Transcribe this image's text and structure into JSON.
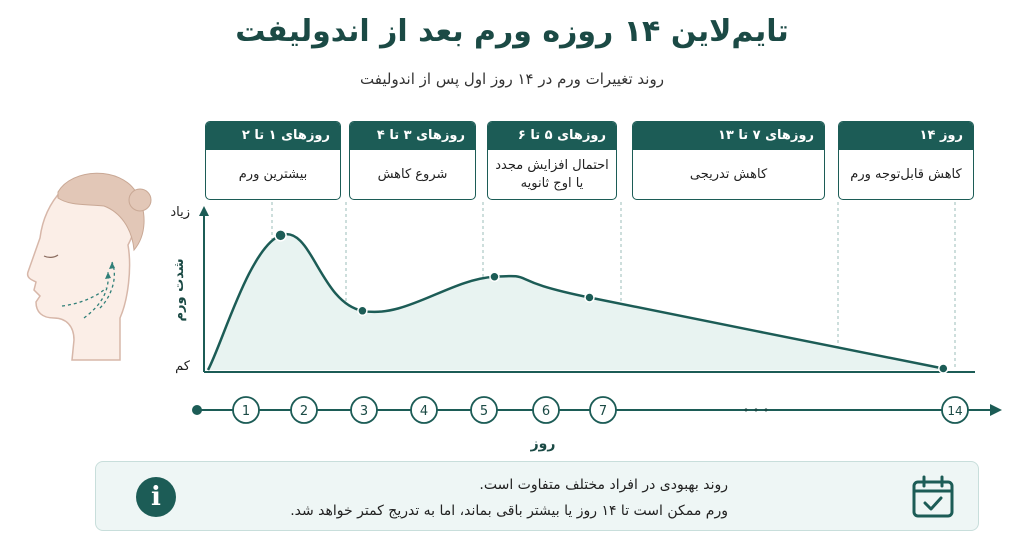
{
  "header": {
    "title": "تایم‌لاین ۱۴ روزه ورم بعد از اندولیفت",
    "subtitle": "روند تغییرات ورم در ۱۴ روز اول پس از اندولیفت"
  },
  "phases": [
    {
      "title": "روزهای ۱ تا ۲",
      "desc": "بیشترین ورم"
    },
    {
      "title": "روزهای ۳ تا ۴",
      "desc": "شروع کاهش"
    },
    {
      "title": "روزهای ۵ تا ۶",
      "desc": "احتمال افزایش مجدد یا اوج ثانویه"
    },
    {
      "title": "روزهای ۷ تا ۱۳",
      "desc": "کاهش تدریجی"
    },
    {
      "title": "روز ۱۴",
      "desc": "کاهش قابل‌توجه ورم"
    }
  ],
  "chart_data": {
    "type": "line",
    "title": "",
    "xlabel": "روز",
    "ylabel": "شدت ورم",
    "y_tick_labels": {
      "high": "زیاد",
      "low": "کم"
    },
    "x_ticks": [
      "1",
      "2",
      "3",
      "4",
      "5",
      "6",
      "7",
      "14"
    ],
    "x_ellipsis": "• • •",
    "xlim": [
      0,
      14.6
    ],
    "ylim": [
      0,
      100
    ],
    "points": [
      {
        "x": 1.45,
        "y": 91
      },
      {
        "x": 3.0,
        "y": 40
      },
      {
        "x": 5.5,
        "y": 63
      },
      {
        "x": 7.3,
        "y": 49
      },
      {
        "x": 14.0,
        "y": 1
      }
    ],
    "series_color": "#1c5c56",
    "fill_color": "#e8f3f1"
  },
  "info": {
    "line1": "روند بهبودی در افراد مختلف متفاوت است.",
    "line2": "ورم ممکن است تا ۱۴ روز یا بیشتر باقی بماند، اما به تدریج کمتر خواهد شد.",
    "info_icon": "i"
  },
  "icons": {
    "face": "face-profile-icon",
    "info": "info-icon",
    "calendar": "calendar-check-icon"
  },
  "colors": {
    "primary": "#1c5c56",
    "light": "#eef6f5"
  }
}
